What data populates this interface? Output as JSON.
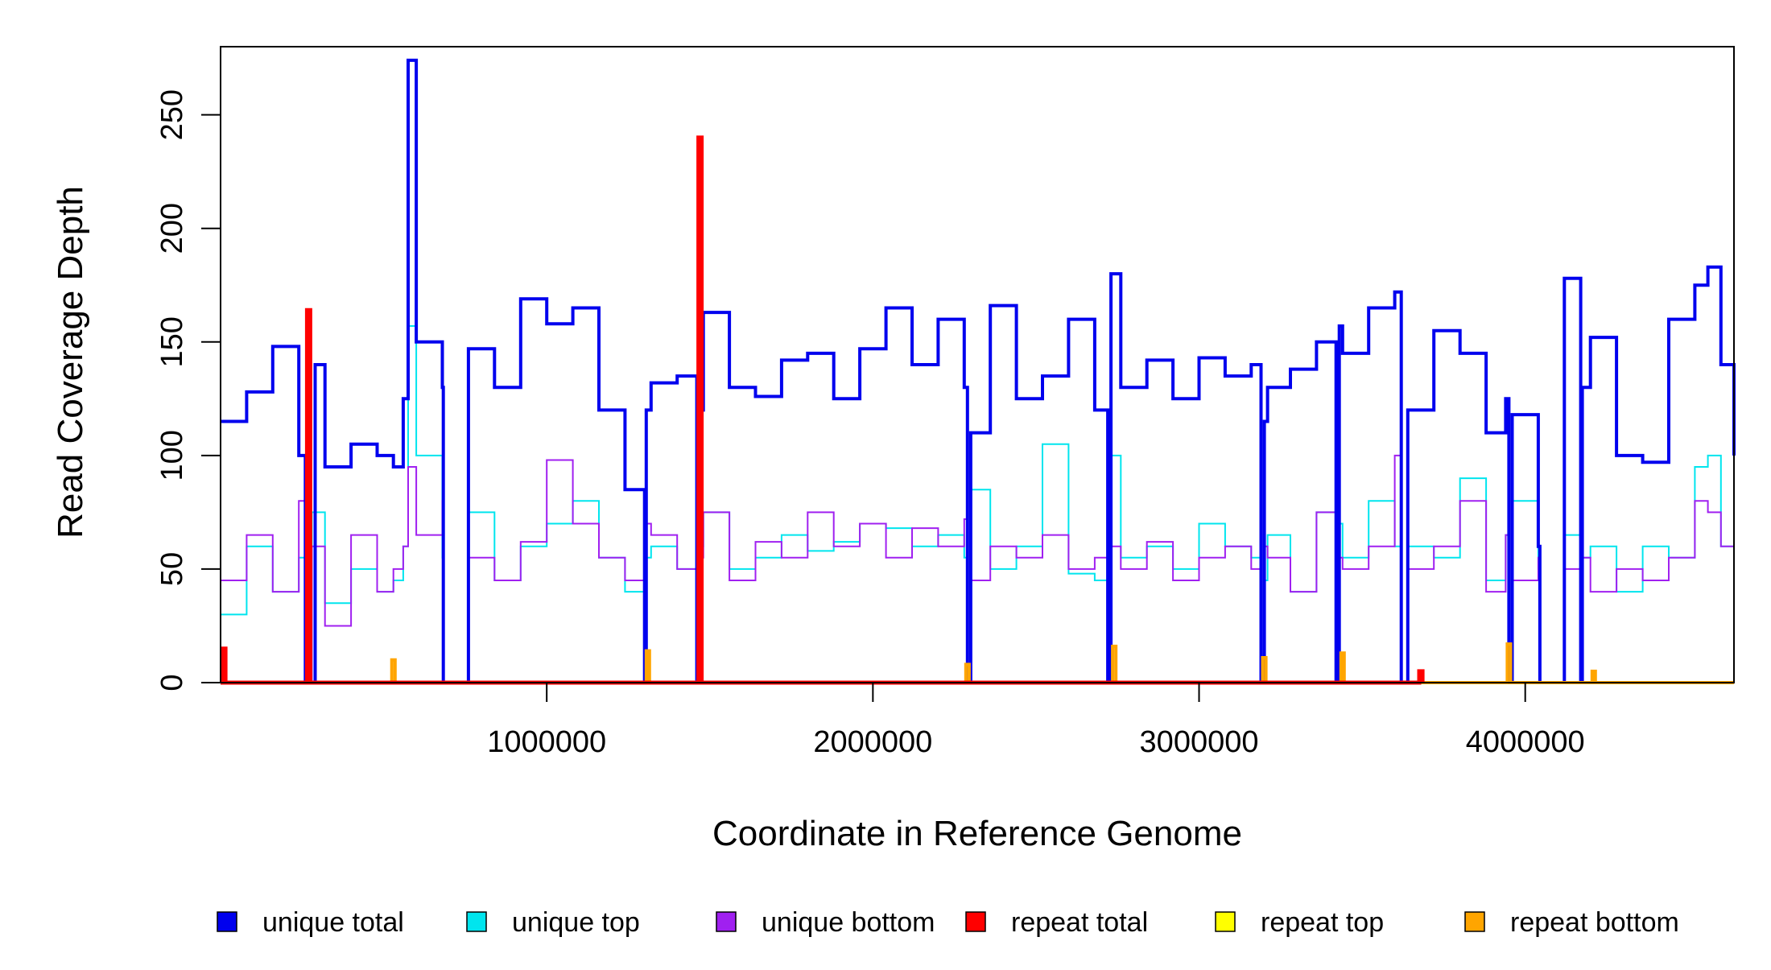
{
  "chart_data": {
    "type": "line",
    "xlabel": "Coordinate in Reference Genome",
    "ylabel": "Read Coverage Depth",
    "xlim": [
      0,
      4640000
    ],
    "ylim": [
      0,
      280
    ],
    "x_ticks": [
      {
        "value": 1000000,
        "label": "1000000"
      },
      {
        "value": 2000000,
        "label": "2000000"
      },
      {
        "value": 3000000,
        "label": "3000000"
      },
      {
        "value": 4000000,
        "label": "4000000"
      }
    ],
    "y_ticks": [
      {
        "value": 0,
        "label": "0"
      },
      {
        "value": 50,
        "label": "50"
      },
      {
        "value": 100,
        "label": "100"
      },
      {
        "value": 150,
        "label": "150"
      },
      {
        "value": 200,
        "label": "200"
      },
      {
        "value": 250,
        "label": "250"
      }
    ],
    "grid": false,
    "legend_position": "bottom",
    "series": [
      {
        "name": "unique total",
        "color": "#0000ee",
        "x": [
          0,
          80000,
          160000,
          240000,
          260000,
          290000,
          320000,
          400000,
          480000,
          530000,
          560000,
          575000,
          600000,
          680000,
          683000,
          760000,
          840000,
          920000,
          1000000,
          1080000,
          1160000,
          1240000,
          1300000,
          1305000,
          1320000,
          1400000,
          1460000,
          1465000,
          1480000,
          1560000,
          1640000,
          1720000,
          1800000,
          1880000,
          1960000,
          2040000,
          2120000,
          2200000,
          2280000,
          2290000,
          2300000,
          2360000,
          2440000,
          2520000,
          2600000,
          2680000,
          2720000,
          2730000,
          2760000,
          2840000,
          2920000,
          3000000,
          3080000,
          3160000,
          3190000,
          3200000,
          3210000,
          3280000,
          3360000,
          3420000,
          3430000,
          3440000,
          3520000,
          3600000,
          3620000,
          3640000,
          3720000,
          3800000,
          3880000,
          3940000,
          3950000,
          3960000,
          4040000,
          4045000,
          4120000,
          4170000,
          4175000,
          4200000,
          4280000,
          4360000,
          4440000,
          4520000,
          4560000,
          4600000,
          4640000
        ],
        "y": [
          115,
          128,
          148,
          100,
          0,
          140,
          95,
          105,
          100,
          95,
          125,
          274,
          150,
          130,
          0,
          147,
          130,
          169,
          158,
          165,
          120,
          85,
          0,
          120,
          132,
          135,
          0,
          120,
          163,
          130,
          126,
          142,
          145,
          125,
          147,
          165,
          140,
          160,
          130,
          0,
          110,
          166,
          125,
          135,
          160,
          120,
          0,
          180,
          130,
          142,
          125,
          143,
          135,
          140,
          0,
          115,
          130,
          138,
          150,
          0,
          157,
          145,
          165,
          172,
          0,
          120,
          155,
          145,
          110,
          125,
          0,
          118,
          60,
          0,
          178,
          0,
          130,
          152,
          100,
          97,
          160,
          175,
          183,
          140,
          100
        ]
      },
      {
        "name": "unique top",
        "color": "#00e5ee",
        "x": [
          0,
          80000,
          160000,
          240000,
          260000,
          280000,
          320000,
          400000,
          480000,
          530000,
          560000,
          575000,
          600000,
          680000,
          683000,
          760000,
          840000,
          920000,
          1000000,
          1080000,
          1160000,
          1240000,
          1300000,
          1305000,
          1320000,
          1400000,
          1460000,
          1465000,
          1480000,
          1560000,
          1640000,
          1720000,
          1800000,
          1880000,
          1960000,
          2040000,
          2120000,
          2200000,
          2280000,
          2290000,
          2300000,
          2360000,
          2440000,
          2520000,
          2600000,
          2680000,
          2720000,
          2730000,
          2760000,
          2840000,
          2920000,
          3000000,
          3080000,
          3160000,
          3190000,
          3200000,
          3210000,
          3280000,
          3360000,
          3420000,
          3430000,
          3440000,
          3520000,
          3600000,
          3620000,
          3640000,
          3720000,
          3800000,
          3880000,
          3940000,
          3950000,
          3960000,
          4040000,
          4045000,
          4120000,
          4170000,
          4175000,
          4200000,
          4280000,
          4360000,
          4440000,
          4520000,
          4560000,
          4600000,
          4640000
        ],
        "y": [
          30,
          60,
          40,
          55,
          0,
          75,
          35,
          50,
          40,
          45,
          60,
          157,
          100,
          55,
          0,
          75,
          45,
          60,
          70,
          80,
          55,
          40,
          0,
          55,
          60,
          50,
          0,
          60,
          75,
          50,
          55,
          65,
          58,
          62,
          70,
          68,
          60,
          65,
          55,
          0,
          85,
          50,
          60,
          105,
          48,
          45,
          0,
          100,
          55,
          60,
          50,
          70,
          60,
          55,
          0,
          45,
          65,
          40,
          75,
          0,
          70,
          55,
          80,
          60,
          0,
          60,
          55,
          90,
          45,
          65,
          0,
          80,
          50,
          0,
          65,
          0,
          55,
          60,
          40,
          60,
          55,
          95,
          100,
          60,
          80
        ]
      },
      {
        "name": "unique bottom",
        "color": "#a020f0",
        "x": [
          0,
          80000,
          160000,
          240000,
          260000,
          280000,
          320000,
          400000,
          480000,
          530000,
          560000,
          575000,
          600000,
          680000,
          683000,
          760000,
          840000,
          920000,
          1000000,
          1080000,
          1160000,
          1240000,
          1300000,
          1305000,
          1320000,
          1400000,
          1460000,
          1465000,
          1480000,
          1560000,
          1640000,
          1720000,
          1800000,
          1880000,
          1960000,
          2040000,
          2120000,
          2200000,
          2280000,
          2290000,
          2300000,
          2360000,
          2440000,
          2520000,
          2600000,
          2680000,
          2720000,
          2730000,
          2760000,
          2840000,
          2920000,
          3000000,
          3080000,
          3160000,
          3190000,
          3200000,
          3210000,
          3280000,
          3360000,
          3420000,
          3430000,
          3440000,
          3520000,
          3600000,
          3620000,
          3640000,
          3720000,
          3800000,
          3880000,
          3940000,
          3950000,
          3960000,
          4040000,
          4045000,
          4120000,
          4170000,
          4175000,
          4200000,
          4280000,
          4360000,
          4440000,
          4520000,
          4560000,
          4600000,
          4640000
        ],
        "y": [
          45,
          65,
          40,
          80,
          0,
          60,
          25,
          65,
          40,
          50,
          60,
          95,
          65,
          80,
          0,
          55,
          45,
          62,
          98,
          70,
          55,
          45,
          0,
          70,
          65,
          50,
          0,
          55,
          75,
          45,
          62,
          55,
          75,
          60,
          70,
          55,
          68,
          60,
          72,
          0,
          45,
          60,
          55,
          65,
          50,
          55,
          0,
          60,
          50,
          62,
          45,
          55,
          60,
          50,
          0,
          60,
          55,
          40,
          75,
          0,
          55,
          50,
          60,
          100,
          0,
          50,
          60,
          80,
          40,
          65,
          0,
          45,
          55,
          0,
          50,
          0,
          55,
          40,
          50,
          45,
          55,
          80,
          75,
          60,
          40
        ]
      },
      {
        "name": "repeat total",
        "color": "#ff0000",
        "x": [
          0,
          5000,
          10000,
          15000,
          260000,
          265000,
          270000,
          275000,
          1460000,
          1465000,
          1470000,
          1475000,
          3670000,
          3675000,
          3680000,
          3685000
        ],
        "y": [
          0,
          15,
          15,
          0,
          0,
          164,
          164,
          0,
          0,
          240,
          240,
          0,
          0,
          5,
          5,
          0
        ]
      },
      {
        "name": "repeat top",
        "color": "#ffff00",
        "x": [
          0,
          1000000,
          2000000,
          3000000,
          4000000,
          4640000
        ],
        "y": [
          0,
          0,
          0,
          0,
          0,
          0
        ]
      },
      {
        "name": "repeat bottom",
        "color": "#ffa500",
        "x": [
          0,
          5000,
          10000,
          15000,
          520000,
          525000,
          530000,
          535000,
          1300000,
          1305000,
          1310000,
          1315000,
          2280000,
          2285000,
          2290000,
          2295000,
          2730000,
          2735000,
          2740000,
          2745000,
          3190000,
          3195000,
          3200000,
          3205000,
          3430000,
          3435000,
          3440000,
          3445000,
          3940000,
          3945000,
          3950000,
          3955000,
          4200000,
          4205000,
          4210000,
          4215000,
          4640000
        ],
        "y": [
          0,
          10,
          10,
          0,
          0,
          10,
          10,
          0,
          0,
          14,
          14,
          0,
          0,
          8,
          8,
          0,
          0,
          16,
          16,
          0,
          0,
          11,
          11,
          0,
          0,
          13,
          13,
          0,
          0,
          17,
          17,
          0,
          0,
          5,
          5,
          0,
          0
        ]
      }
    ]
  }
}
